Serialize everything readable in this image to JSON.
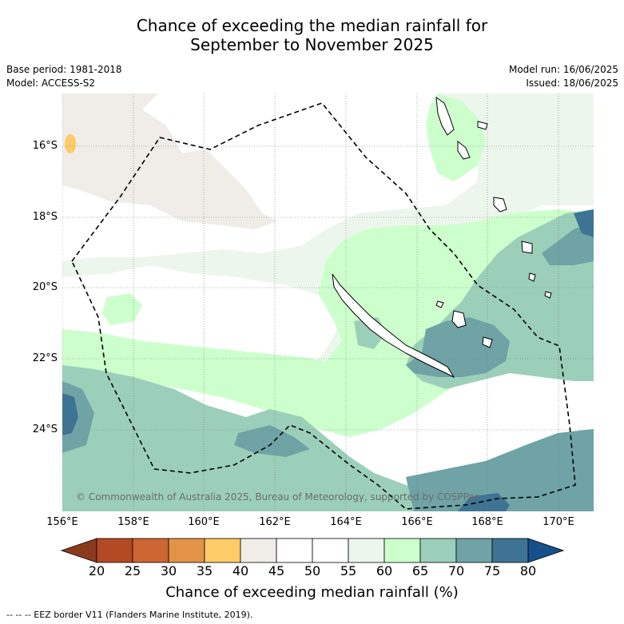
{
  "title_line1": "Chance of exceeding the median rainfall for",
  "title_line2": "September to November 2025",
  "base_period": "Base period: 1981-2018",
  "model": "Model: ACCESS-S2",
  "model_run": "Model run: 16/06/2025",
  "issued": "Issued: 18/06/2025",
  "copyright": "© Commonwealth of Australia 2025, Bureau of Meteorology, supported by COSPPac",
  "lat_labels": [
    "16°S",
    "18°S",
    "20°S",
    "22°S",
    "24°S"
  ],
  "lon_labels": [
    "156°E",
    "158°E",
    "160°E",
    "162°E",
    "164°E",
    "166°E",
    "168°E",
    "170°E"
  ],
  "colorbar": {
    "ticks": [
      "20",
      "25",
      "30",
      "35",
      "40",
      "45",
      "50",
      "55",
      "60",
      "65",
      "70",
      "75",
      "80"
    ],
    "colors": [
      "#b44a23",
      "#cc6633",
      "#e39347",
      "#fdcc66",
      "#f0ece8",
      "#ffffff",
      "#ffffff",
      "#edf6ec",
      "#ccffcc",
      "#9ccfb9",
      "#6fa3a6",
      "#3e7393"
    ],
    "under_color": "#8b3a1e",
    "over_color": "#16508a",
    "label": "Chance of exceeding median rainfall (%)"
  },
  "footer": "--  --  -- EEZ border V11 (Flanders Marine Institute, 2019)."
}
